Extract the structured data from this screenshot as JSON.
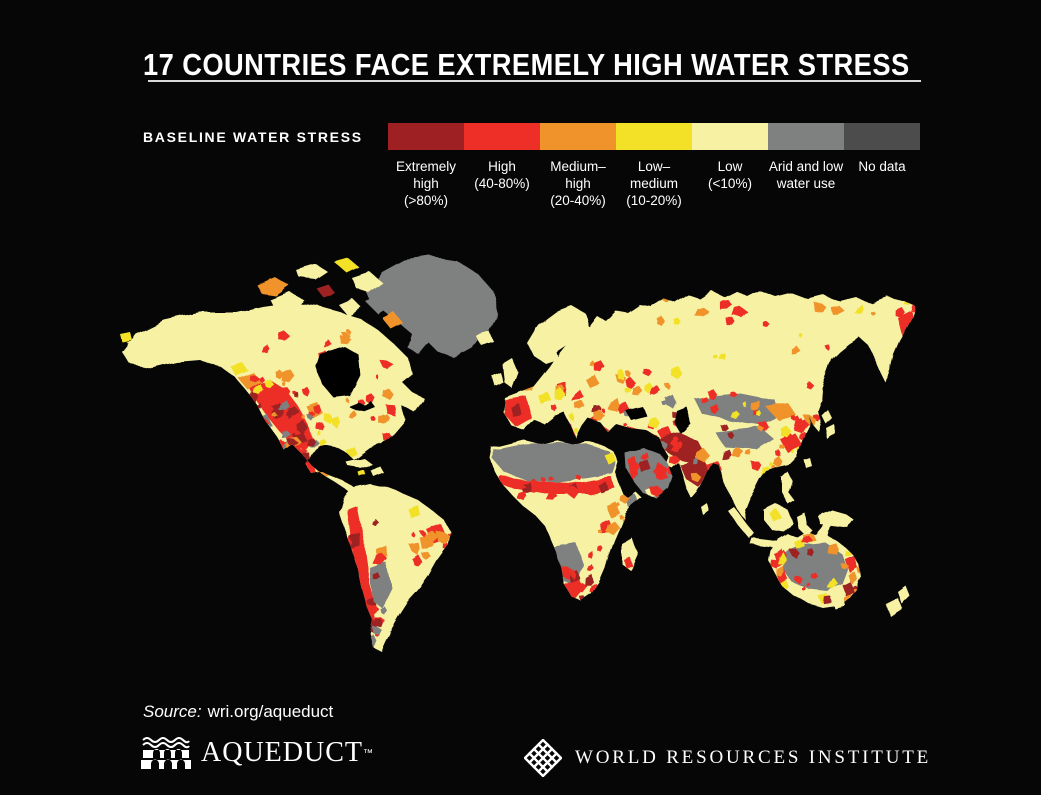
{
  "title": "17 COUNTRIES FACE EXTREMELY HIGH WATER STRESS",
  "legend": {
    "heading": "BASELINE WATER STRESS",
    "items": [
      {
        "key": "extremely-high",
        "lines": [
          "Extremely",
          "high",
          "(>80%)"
        ],
        "color": "#9E2023"
      },
      {
        "key": "high",
        "lines": [
          "High",
          "(40-80%)"
        ],
        "color": "#ED2F28"
      },
      {
        "key": "medium-high",
        "lines": [
          "Medium–",
          "high",
          "(20-40%)"
        ],
        "color": "#F0932B"
      },
      {
        "key": "low-medium",
        "lines": [
          "Low–",
          "medium",
          "(10-20%)"
        ],
        "color": "#F2E126"
      },
      {
        "key": "low",
        "lines": [
          "Low",
          "(<10%)"
        ],
        "color": "#F6F1A3"
      },
      {
        "key": "arid",
        "lines": [
          "Arid and low",
          "water use"
        ],
        "color": "#7F8080"
      },
      {
        "key": "no-data",
        "lines": [
          "No data"
        ],
        "color": "#4C4C4C"
      }
    ]
  },
  "source": {
    "label": "Source:",
    "value": "wri.org/aqueduct"
  },
  "footer": {
    "aqueduct": {
      "text": "AQUEDUCT",
      "tm": "™"
    },
    "wri": {
      "text": "WORLD RESOURCES INSTITUTE"
    }
  },
  "colors": {
    "background": "#060606",
    "text": "#FFFFFF",
    "rule": "#D9D9D9"
  }
}
